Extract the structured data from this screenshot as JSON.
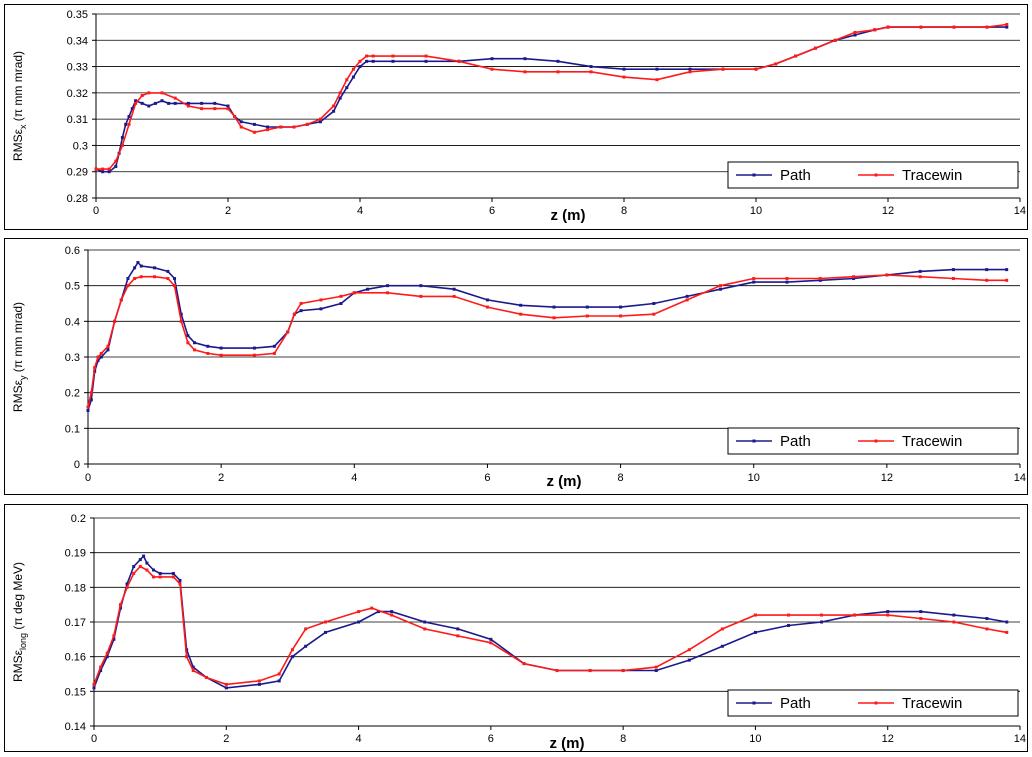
{
  "colors": {
    "path": "#1a1a8c",
    "tracewin": "#ff1a1a"
  },
  "chart_data": [
    {
      "type": "line",
      "title": "",
      "xlabel": "z (m)",
      "ylabel": "RMSεx (π mm mrad)",
      "ylabel_main": "RMSε",
      "ylabel_sub": "x",
      "ylabel_tail": " (π mm mrad)",
      "xlim": [
        0,
        14
      ],
      "ylim": [
        0.28,
        0.35
      ],
      "xticks": [
        0,
        2,
        4,
        6,
        8,
        10,
        12,
        14
      ],
      "yticks": [
        0.28,
        0.29,
        0.3,
        0.31,
        0.32,
        0.33,
        0.34,
        0.35
      ],
      "ytick_labels": [
        "0.28",
        "0.29",
        "0.3",
        "0.31",
        "0.32",
        "0.33",
        "0.34",
        "0.35"
      ],
      "grid": true,
      "legend": "bottom-right",
      "series": [
        {
          "name": "Path",
          "x": [
            0,
            0.1,
            0.2,
            0.3,
            0.35,
            0.4,
            0.45,
            0.5,
            0.55,
            0.6,
            0.7,
            0.8,
            0.9,
            1.0,
            1.1,
            1.2,
            1.4,
            1.6,
            1.8,
            2.0,
            2.1,
            2.2,
            2.4,
            2.6,
            2.8,
            3.0,
            3.2,
            3.4,
            3.6,
            3.7,
            3.8,
            3.9,
            4.0,
            4.1,
            4.2,
            4.5,
            5.0,
            5.5,
            6.0,
            6.5,
            7.0,
            7.5,
            8.0,
            8.5,
            9.0,
            9.5,
            10.0,
            10.3,
            10.6,
            10.9,
            11.2,
            11.5,
            11.8,
            12.0,
            12.5,
            13.0,
            13.5,
            13.8
          ],
          "y": [
            0.291,
            0.29,
            0.29,
            0.292,
            0.297,
            0.303,
            0.308,
            0.311,
            0.314,
            0.317,
            0.316,
            0.315,
            0.316,
            0.317,
            0.316,
            0.316,
            0.316,
            0.316,
            0.316,
            0.315,
            0.311,
            0.309,
            0.308,
            0.307,
            0.307,
            0.307,
            0.308,
            0.309,
            0.313,
            0.318,
            0.322,
            0.326,
            0.33,
            0.332,
            0.332,
            0.332,
            0.332,
            0.332,
            0.333,
            0.333,
            0.332,
            0.33,
            0.329,
            0.329,
            0.329,
            0.329,
            0.329,
            0.331,
            0.334,
            0.337,
            0.34,
            0.342,
            0.344,
            0.345,
            0.345,
            0.345,
            0.345,
            0.345
          ]
        },
        {
          "name": "Tracewin",
          "x": [
            0,
            0.1,
            0.2,
            0.3,
            0.4,
            0.5,
            0.6,
            0.7,
            0.8,
            1.0,
            1.2,
            1.4,
            1.6,
            1.8,
            2.0,
            2.1,
            2.2,
            2.4,
            2.6,
            2.8,
            3.0,
            3.2,
            3.4,
            3.6,
            3.7,
            3.8,
            3.9,
            4.0,
            4.1,
            4.2,
            4.5,
            5.0,
            5.5,
            6.0,
            6.5,
            7.0,
            7.5,
            8.0,
            8.5,
            9.0,
            9.5,
            10.0,
            10.3,
            10.6,
            10.9,
            11.2,
            11.5,
            11.8,
            12.0,
            12.5,
            13.0,
            13.5,
            13.8
          ],
          "y": [
            0.291,
            0.291,
            0.291,
            0.294,
            0.3,
            0.308,
            0.316,
            0.319,
            0.32,
            0.32,
            0.318,
            0.315,
            0.314,
            0.314,
            0.314,
            0.311,
            0.307,
            0.305,
            0.306,
            0.307,
            0.307,
            0.308,
            0.31,
            0.315,
            0.32,
            0.325,
            0.329,
            0.332,
            0.334,
            0.334,
            0.334,
            0.334,
            0.332,
            0.329,
            0.328,
            0.328,
            0.328,
            0.326,
            0.325,
            0.328,
            0.329,
            0.329,
            0.331,
            0.334,
            0.337,
            0.34,
            0.343,
            0.344,
            0.345,
            0.345,
            0.345,
            0.345,
            0.346
          ]
        }
      ]
    },
    {
      "type": "line",
      "title": "",
      "xlabel": "z (m)",
      "ylabel": "RMSεy (π mm mrad)",
      "ylabel_main": "RMSε",
      "ylabel_sub": "y",
      "ylabel_tail": " (π mm mrad)",
      "xlim": [
        0,
        14
      ],
      "ylim": [
        0,
        0.6
      ],
      "xticks": [
        0,
        2,
        4,
        6,
        8,
        10,
        12,
        14
      ],
      "yticks": [
        0,
        0.1,
        0.2,
        0.3,
        0.4,
        0.5,
        0.6
      ],
      "ytick_labels": [
        "0",
        "0.1",
        "0.2",
        "0.3",
        "0.4",
        "0.5",
        "0.6"
      ],
      "grid": true,
      "legend": "bottom-right",
      "series": [
        {
          "name": "Path",
          "x": [
            0,
            0.05,
            0.1,
            0.15,
            0.2,
            0.3,
            0.4,
            0.5,
            0.6,
            0.7,
            0.75,
            0.8,
            1.0,
            1.2,
            1.3,
            1.4,
            1.5,
            1.6,
            1.8,
            2.0,
            2.5,
            2.8,
            3.0,
            3.1,
            3.2,
            3.5,
            3.8,
            4.0,
            4.2,
            4.5,
            5.0,
            5.5,
            6.0,
            6.5,
            7.0,
            7.5,
            8.0,
            8.5,
            9.0,
            9.5,
            10.0,
            10.5,
            11.0,
            11.5,
            12.0,
            12.5,
            13.0,
            13.5,
            13.8
          ],
          "y": [
            0.15,
            0.18,
            0.26,
            0.29,
            0.3,
            0.32,
            0.4,
            0.46,
            0.52,
            0.55,
            0.565,
            0.555,
            0.55,
            0.54,
            0.52,
            0.42,
            0.36,
            0.34,
            0.33,
            0.325,
            0.325,
            0.33,
            0.37,
            0.42,
            0.43,
            0.435,
            0.45,
            0.48,
            0.49,
            0.5,
            0.5,
            0.49,
            0.46,
            0.445,
            0.44,
            0.44,
            0.44,
            0.45,
            0.47,
            0.49,
            0.51,
            0.51,
            0.515,
            0.52,
            0.53,
            0.54,
            0.545,
            0.545,
            0.545
          ]
        },
        {
          "name": "Tracewin",
          "x": [
            0,
            0.05,
            0.1,
            0.15,
            0.2,
            0.3,
            0.4,
            0.5,
            0.6,
            0.7,
            0.8,
            1.0,
            1.2,
            1.3,
            1.4,
            1.5,
            1.6,
            1.8,
            2.0,
            2.5,
            2.8,
            3.0,
            3.1,
            3.2,
            3.5,
            3.8,
            4.0,
            4.5,
            5.0,
            5.5,
            6.0,
            6.5,
            7.0,
            7.5,
            8.0,
            8.5,
            9.0,
            9.5,
            10.0,
            10.5,
            11.0,
            11.5,
            12.0,
            12.5,
            13.0,
            13.5,
            13.8
          ],
          "y": [
            0.16,
            0.2,
            0.27,
            0.3,
            0.31,
            0.33,
            0.4,
            0.46,
            0.5,
            0.52,
            0.525,
            0.525,
            0.52,
            0.5,
            0.4,
            0.34,
            0.32,
            0.31,
            0.305,
            0.305,
            0.31,
            0.37,
            0.42,
            0.45,
            0.46,
            0.47,
            0.48,
            0.48,
            0.47,
            0.47,
            0.44,
            0.42,
            0.41,
            0.415,
            0.415,
            0.42,
            0.46,
            0.5,
            0.52,
            0.52,
            0.52,
            0.525,
            0.53,
            0.525,
            0.52,
            0.515,
            0.515
          ]
        }
      ]
    },
    {
      "type": "line",
      "title": "",
      "xlabel": "z (m)",
      "ylabel": "RMSεlong (π deg MeV)",
      "ylabel_main": "RMSε",
      "ylabel_sub": "long",
      "ylabel_tail": " (π deg MeV)",
      "xlim": [
        0,
        14
      ],
      "ylim": [
        0.14,
        0.2
      ],
      "xticks": [
        0,
        2,
        4,
        6,
        8,
        10,
        12,
        14
      ],
      "yticks": [
        0.14,
        0.15,
        0.16,
        0.17,
        0.18,
        0.19,
        0.2
      ],
      "ytick_labels": [
        "0.14",
        "0.15",
        "0.16",
        "0.17",
        "0.18",
        "0.19",
        "0.2"
      ],
      "grid": true,
      "legend": "bottom-right",
      "series": [
        {
          "name": "Path",
          "x": [
            0,
            0.1,
            0.2,
            0.3,
            0.4,
            0.5,
            0.6,
            0.7,
            0.75,
            0.8,
            0.9,
            1.0,
            1.2,
            1.3,
            1.4,
            1.5,
            1.7,
            2.0,
            2.5,
            2.8,
            3.0,
            3.2,
            3.5,
            4.0,
            4.3,
            4.5,
            5.0,
            5.5,
            6.0,
            6.5,
            7.0,
            7.5,
            8.0,
            8.5,
            9.0,
            9.5,
            10.0,
            10.5,
            11.0,
            11.5,
            12.0,
            12.5,
            13.0,
            13.5,
            13.8
          ],
          "y": [
            0.151,
            0.156,
            0.16,
            0.165,
            0.174,
            0.181,
            0.186,
            0.188,
            0.189,
            0.187,
            0.185,
            0.184,
            0.184,
            0.182,
            0.162,
            0.157,
            0.154,
            0.151,
            0.152,
            0.153,
            0.16,
            0.163,
            0.167,
            0.17,
            0.173,
            0.173,
            0.17,
            0.168,
            0.165,
            0.158,
            0.156,
            0.156,
            0.156,
            0.156,
            0.159,
            0.163,
            0.167,
            0.169,
            0.17,
            0.172,
            0.173,
            0.173,
            0.172,
            0.171,
            0.17
          ]
        },
        {
          "name": "Tracewin",
          "x": [
            0,
            0.1,
            0.2,
            0.3,
            0.4,
            0.5,
            0.6,
            0.7,
            0.8,
            0.9,
            1.0,
            1.2,
            1.3,
            1.4,
            1.5,
            1.7,
            2.0,
            2.5,
            2.8,
            3.0,
            3.2,
            3.5,
            4.0,
            4.2,
            4.5,
            5.0,
            5.5,
            6.0,
            6.5,
            7.0,
            7.5,
            8.0,
            8.5,
            9.0,
            9.5,
            10.0,
            10.5,
            11.0,
            11.5,
            12.0,
            12.5,
            13.0,
            13.5,
            13.8
          ],
          "y": [
            0.152,
            0.157,
            0.161,
            0.166,
            0.175,
            0.18,
            0.184,
            0.186,
            0.185,
            0.183,
            0.183,
            0.183,
            0.181,
            0.16,
            0.156,
            0.154,
            0.152,
            0.153,
            0.155,
            0.162,
            0.168,
            0.17,
            0.173,
            0.174,
            0.172,
            0.168,
            0.166,
            0.164,
            0.158,
            0.156,
            0.156,
            0.156,
            0.157,
            0.162,
            0.168,
            0.172,
            0.172,
            0.172,
            0.172,
            0.172,
            0.171,
            0.17,
            0.168,
            0.167
          ]
        }
      ]
    }
  ]
}
